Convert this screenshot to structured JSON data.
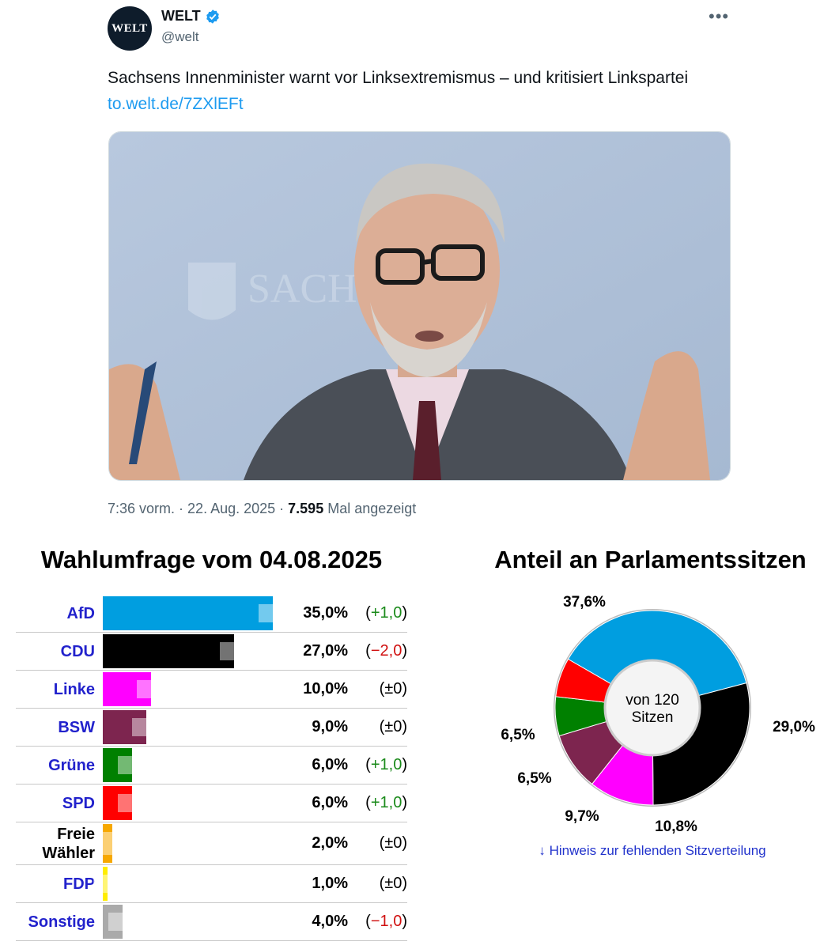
{
  "tweet": {
    "avatar_text": "WELT",
    "name": "WELT",
    "handle": "@welt",
    "text": "Sachsens Innenminister warnt vor Linksextremismus – und kritisiert Linkspartei",
    "link": "to.welt.de/7ZXlEFt",
    "time": "7:36 vorm.",
    "date": "22. Aug. 2025",
    "views": "7.595",
    "views_label": "Mal angezeigt",
    "more_icon": "more-icon",
    "photo_sign": "SACHSEN"
  },
  "poll": {
    "title": "Wahlumfrage vom 04.08.2025",
    "chart_data": {
      "type": "bar",
      "title": "Wahlumfrage vom 04.08.2025",
      "max_value": 35,
      "rows": [
        {
          "party": "AfD",
          "value": 35.0,
          "label": "35,0%",
          "change": "(+1,0)",
          "change_sign": "pos",
          "color": "#009ee0",
          "ghost": 1.0
        },
        {
          "party": "CDU",
          "value": 27.0,
          "label": "27,0%",
          "change": "(−2,0)",
          "change_sign": "neg",
          "color": "#000000",
          "ghost": -2.0
        },
        {
          "party": "Linke",
          "value": 10.0,
          "label": "10,0%",
          "change": "(±0)",
          "change_sign": "zero",
          "color": "#ff00ff",
          "ghost": 0
        },
        {
          "party": "BSW",
          "value": 9.0,
          "label": "9,0%",
          "change": "(±0)",
          "change_sign": "zero",
          "color": "#7d254f",
          "ghost": 0
        },
        {
          "party": "Grüne",
          "value": 6.0,
          "label": "6,0%",
          "change": "(+1,0)",
          "change_sign": "pos",
          "color": "#008000",
          "ghost": 1.0
        },
        {
          "party": "SPD",
          "value": 6.0,
          "label": "6,0%",
          "change": "(+1,0)",
          "change_sign": "pos",
          "color": "#ff0000",
          "ghost": 1.0
        },
        {
          "party": "Freie Wähler",
          "value": 2.0,
          "label": "2,0%",
          "change": "(±0)",
          "change_sign": "zero",
          "color": "#f7a800",
          "ghost": 0
        },
        {
          "party": "FDP",
          "value": 1.0,
          "label": "1,0%",
          "change": "(±0)",
          "change_sign": "zero",
          "color": "#ffed00",
          "ghost": 0
        },
        {
          "party": "Sonstige",
          "value": 4.0,
          "label": "4,0%",
          "change": "(−1,0)",
          "change_sign": "neg",
          "color": "#aaaaaa",
          "ghost": -1.0
        }
      ]
    }
  },
  "seats": {
    "title": "Anteil an Parlamentssitzen",
    "center_line1": "von 120",
    "center_line2": "Sitzen",
    "note": "↓ Hinweis zur fehlenden Sitzverteilung",
    "chart_data": {
      "type": "pie",
      "title": "Anteil an Parlamentssitzen",
      "slices": [
        {
          "name": "AfD",
          "value": 37.6,
          "label": "37,6%",
          "color": "#009ee0"
        },
        {
          "name": "CDU",
          "value": 29.0,
          "label": "29,0%",
          "color": "#000000"
        },
        {
          "name": "Linke",
          "value": 10.8,
          "label": "10,8%",
          "color": "#ff00ff"
        },
        {
          "name": "BSW",
          "value": 9.7,
          "label": "9,7%",
          "color": "#7d254f"
        },
        {
          "name": "Grüne",
          "value": 6.5,
          "label": "6,5%",
          "color": "#008000"
        },
        {
          "name": "SPD",
          "value": 6.5,
          "label": "6,5%",
          "color": "#ff0000"
        }
      ]
    }
  }
}
